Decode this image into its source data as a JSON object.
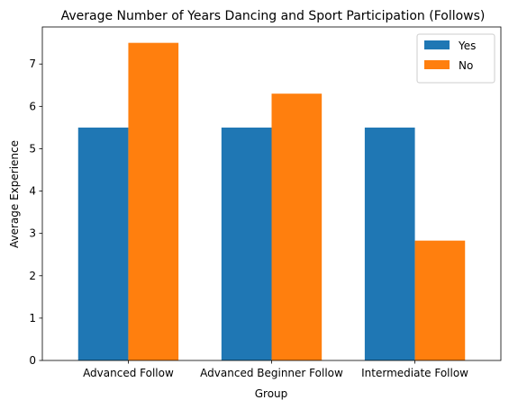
{
  "chart_data": {
    "type": "bar",
    "title": "Average Number of Years Dancing and Sport Participation (Follows)",
    "xlabel": "Group",
    "ylabel": "Average Experience",
    "categories": [
      "Advanced Follow",
      "Advanced Beginner Follow",
      "Intermediate Follow"
    ],
    "series": [
      {
        "name": "Yes",
        "values": [
          5.5,
          5.5,
          5.5
        ],
        "color": "#1f77b4"
      },
      {
        "name": "No",
        "values": [
          7.5,
          6.3,
          2.83
        ],
        "color": "#ff7f0e"
      }
    ],
    "ylim": [
      0,
      7.875
    ],
    "yticks": [
      "0",
      "1",
      "2",
      "3",
      "4",
      "5",
      "6",
      "7"
    ],
    "grid": false,
    "legend_position": "top-right"
  }
}
